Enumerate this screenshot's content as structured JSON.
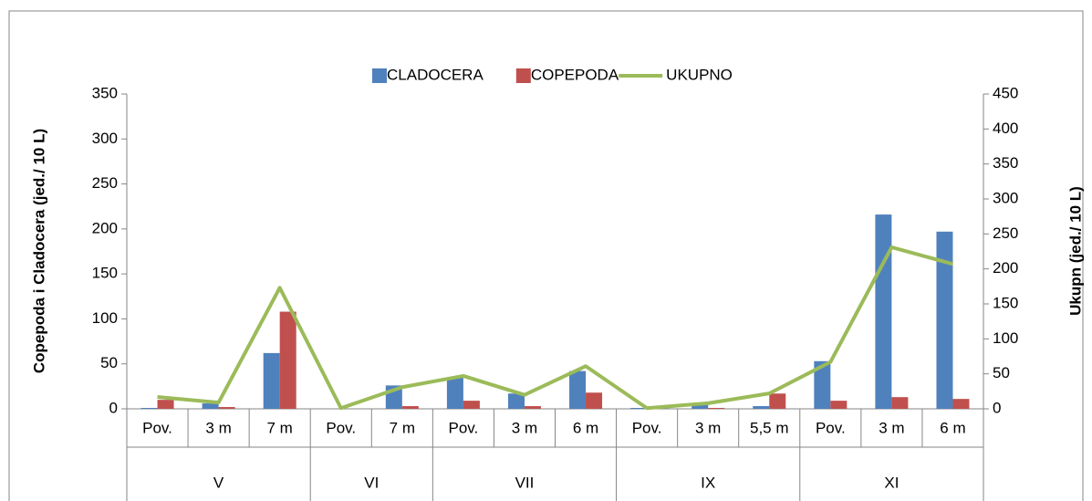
{
  "chart_data": {
    "type": "bar_line",
    "groups": [
      {
        "name": "V",
        "categories": [
          "Pov.",
          "3 m",
          "7 m"
        ]
      },
      {
        "name": "VI",
        "categories": [
          "Pov.",
          "7 m"
        ]
      },
      {
        "name": "VII",
        "categories": [
          "Pov.",
          "3 m",
          "6 m"
        ]
      },
      {
        "name": "IX",
        "categories": [
          "Pov.",
          "3 m",
          "5,5 m"
        ]
      },
      {
        "name": "XI",
        "categories": [
          "Pov.",
          "3 m",
          "6 m"
        ]
      }
    ],
    "series": [
      {
        "name": "CLADOCERA",
        "type": "bar",
        "color": "#4f81bd",
        "values": [
          1,
          6,
          62,
          0,
          26,
          35,
          17,
          42,
          1,
          6,
          3,
          53,
          216,
          197
        ]
      },
      {
        "name": "COPEPODA",
        "type": "bar",
        "color": "#c0504d",
        "values": [
          10,
          2,
          108,
          0,
          3,
          9,
          3,
          18,
          0,
          1,
          17,
          9,
          13,
          11
        ]
      },
      {
        "name": "UKUPNO",
        "type": "line",
        "axis": "y2",
        "color": "#9bbb59",
        "values": [
          17,
          9,
          173,
          1,
          31,
          47,
          20,
          61,
          1,
          8,
          22,
          67,
          231,
          207
        ]
      }
    ],
    "ylabel": "Copepoda i Cladocera  (jed./ 10 L)",
    "y2label": "Ukupn (jed./ 10 L)",
    "ylim": [
      0,
      350
    ],
    "yticks": [
      0,
      50,
      100,
      150,
      200,
      250,
      300,
      350
    ],
    "y2lim": [
      0,
      450
    ],
    "y2ticks": [
      0,
      50,
      100,
      150,
      200,
      250,
      300,
      350,
      400,
      450
    ],
    "legend": "top"
  }
}
